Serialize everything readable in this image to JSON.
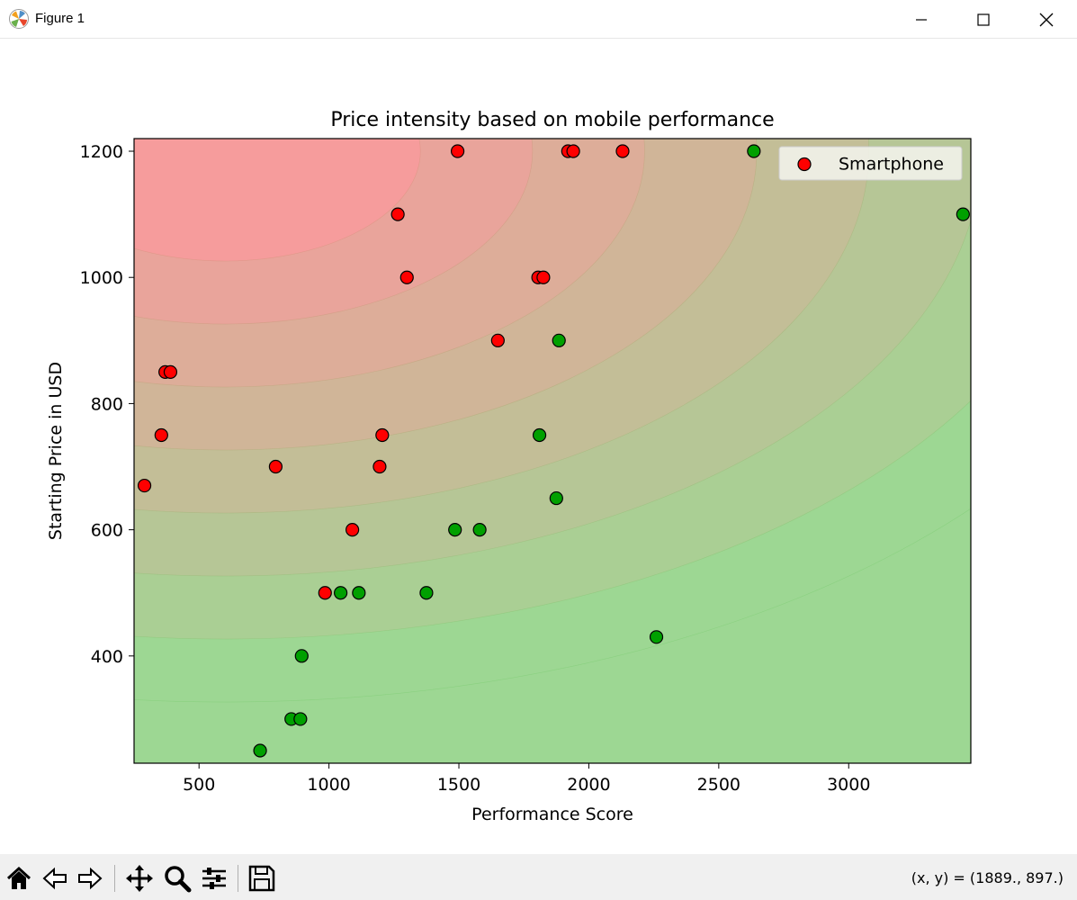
{
  "window": {
    "title": "Figure 1"
  },
  "status": {
    "coords": "(x, y) = (1889., 897.)"
  },
  "toolbar": {
    "icons": [
      "home-icon",
      "back-icon",
      "forward-icon",
      "pan-icon",
      "zoom-icon",
      "configure-subplots-icon",
      "save-icon"
    ]
  },
  "chart_data": {
    "type": "scatter",
    "title": "Price intensity based on mobile performance",
    "xlabel": "Performance Score",
    "ylabel": "Starting Price in USD",
    "xlim": [
      250,
      3470
    ],
    "ylim": [
      230,
      1220
    ],
    "xticks": [
      500,
      1000,
      1500,
      2000,
      2500,
      3000
    ],
    "yticks": [
      400,
      600,
      800,
      1000,
      1200
    ],
    "grid": false,
    "legend": {
      "position": "upper-right",
      "entries": [
        {
          "label": "Smartphone",
          "color": "#ff0000"
        }
      ]
    },
    "background": {
      "type": "filled-contour",
      "center": [
        600,
        1200
      ],
      "colors_from": "#f69c9c",
      "colors_to": "#9dd793"
    },
    "colors": {
      "red": "#ff0000",
      "green": "#00a000"
    },
    "series": [
      {
        "color": "red",
        "points": [
          [
            290,
            670
          ],
          [
            355,
            750
          ],
          [
            370,
            850
          ],
          [
            390,
            850
          ],
          [
            795,
            700
          ],
          [
            985,
            500
          ],
          [
            1090,
            600
          ],
          [
            1195,
            700
          ],
          [
            1205,
            750
          ],
          [
            1265,
            1100
          ],
          [
            1300,
            1000
          ],
          [
            1495,
            1200
          ],
          [
            1650,
            900
          ],
          [
            1805,
            1000
          ],
          [
            1825,
            1000
          ],
          [
            1920,
            1200
          ],
          [
            1940,
            1200
          ],
          [
            2130,
            1200
          ]
        ]
      },
      {
        "color": "green",
        "points": [
          [
            735,
            250
          ],
          [
            855,
            300
          ],
          [
            890,
            300
          ],
          [
            895,
            400
          ],
          [
            1045,
            500
          ],
          [
            1115,
            500
          ],
          [
            1375,
            500
          ],
          [
            1485,
            600
          ],
          [
            1580,
            600
          ],
          [
            1810,
            750
          ],
          [
            1875,
            650
          ],
          [
            1885,
            900
          ],
          [
            2260,
            430
          ],
          [
            2635,
            1200
          ],
          [
            3440,
            1100
          ]
        ]
      }
    ]
  }
}
